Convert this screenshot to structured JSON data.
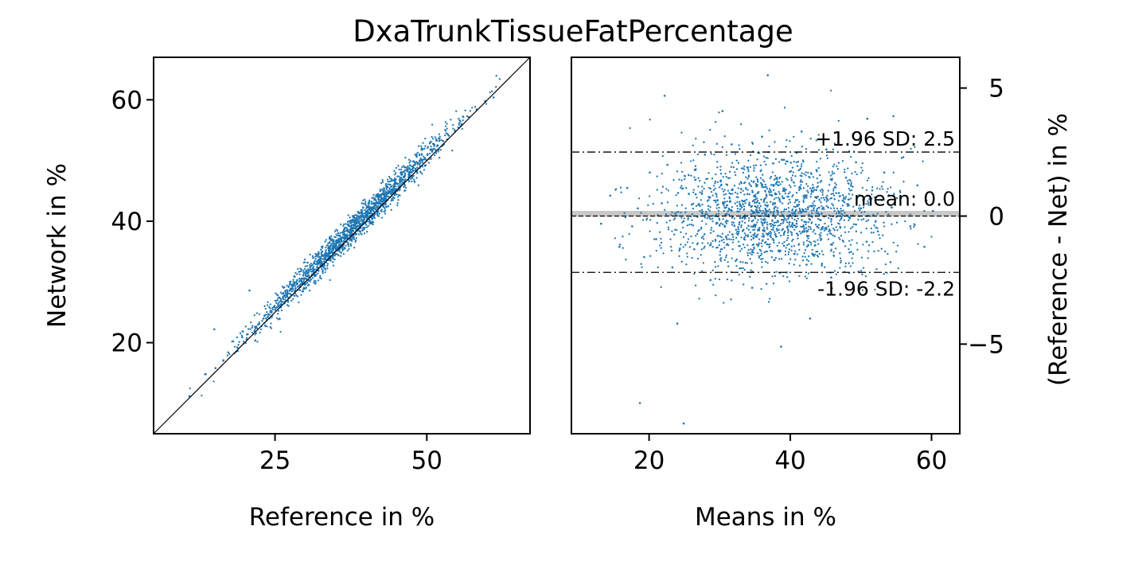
{
  "figure": {
    "title": "DxaTrunkTissueFatPercentage"
  },
  "colors": {
    "points": "#1f77b4",
    "identity_line": "#000000",
    "zero_line": "#c8c8c8",
    "limit_lines": "#000000"
  },
  "chart_data": [
    {
      "type": "scatter",
      "name": "scatter-panel",
      "xlabel": "Reference in %",
      "ylabel": "Network in %",
      "xlim": [
        5,
        67
      ],
      "ylim": [
        5,
        67
      ],
      "xticks": [
        25,
        50
      ],
      "yticks": [
        20,
        40,
        60
      ],
      "identity_line": true,
      "grid": false,
      "sampled_points": [
        [
          10.9,
          11.2
        ],
        [
          13.5,
          14.8
        ],
        [
          15.2,
          15.8
        ],
        [
          16.5,
          17.1
        ],
        [
          17.3,
          18.4
        ],
        [
          18.8,
          19.2
        ],
        [
          19.6,
          20.9
        ],
        [
          20.5,
          21.4
        ],
        [
          21.7,
          22.6
        ],
        [
          22.4,
          23.1
        ],
        [
          23.3,
          24.5
        ],
        [
          24.1,
          24.0
        ],
        [
          24.8,
          25.9
        ],
        [
          25.5,
          26.2
        ],
        [
          26.3,
          27.5
        ],
        [
          27.0,
          27.6
        ],
        [
          27.8,
          28.9
        ],
        [
          28.4,
          29.0
        ],
        [
          29.2,
          30.3
        ],
        [
          29.9,
          30.6
        ],
        [
          30.6,
          31.8
        ],
        [
          31.3,
          32.1
        ],
        [
          31.9,
          33.0
        ],
        [
          32.6,
          33.4
        ],
        [
          33.2,
          34.5
        ],
        [
          33.9,
          34.7
        ],
        [
          34.5,
          35.9
        ],
        [
          35.1,
          36.0
        ],
        [
          35.8,
          37.1
        ],
        [
          36.4,
          37.3
        ],
        [
          37.0,
          38.3
        ],
        [
          37.6,
          38.5
        ],
        [
          38.2,
          39.6
        ],
        [
          38.8,
          39.7
        ],
        [
          39.4,
          40.8
        ],
        [
          40.0,
          41.0
        ],
        [
          40.6,
          41.9
        ],
        [
          41.2,
          42.3
        ],
        [
          41.8,
          43.0
        ],
        [
          42.4,
          43.5
        ],
        [
          43.0,
          44.2
        ],
        [
          43.7,
          44.9
        ],
        [
          44.3,
          45.3
        ],
        [
          45.0,
          46.2
        ],
        [
          45.7,
          46.6
        ],
        [
          46.4,
          47.5
        ],
        [
          47.1,
          48.0
        ],
        [
          47.8,
          48.8
        ],
        [
          48.5,
          49.4
        ],
        [
          49.3,
          50.1
        ],
        [
          50.1,
          50.9
        ],
        [
          50.9,
          51.6
        ],
        [
          51.8,
          52.5
        ],
        [
          52.7,
          53.2
        ],
        [
          53.6,
          54.1
        ],
        [
          54.6,
          55.0
        ],
        [
          55.7,
          56.0
        ],
        [
          56.9,
          57.2
        ],
        [
          58.2,
          58.4
        ],
        [
          59.6,
          59.8
        ],
        [
          61.0,
          60.4
        ],
        [
          15.0,
          22.2
        ],
        [
          20.8,
          28.6
        ]
      ]
    },
    {
      "type": "scatter",
      "name": "bland-altman-panel",
      "xlabel": "Means in %",
      "ylabel": "(Reference - Net) in %",
      "xlim": [
        9,
        64
      ],
      "ylim": [
        -8.5,
        6.2
      ],
      "xticks": [
        20,
        40,
        60
      ],
      "yticks": [
        5,
        0,
        -5
      ],
      "ytick_labels": [
        "5",
        "0",
        "−5"
      ],
      "ylabel_position": "right",
      "zero_line": 0,
      "mean": 0.0,
      "upper_limit": 2.5,
      "lower_limit": -2.2,
      "annotations": {
        "upper": "+1.96 SD: 2.5",
        "mean": "mean: 0.0",
        "lower": "-1.96 SD: -2.2"
      },
      "grid": false,
      "sampled_points": [
        [
          13.2,
          -0.3
        ],
        [
          14.5,
          0.8
        ],
        [
          15.8,
          -1.2
        ],
        [
          16.9,
          1.1
        ],
        [
          17.6,
          -0.4
        ],
        [
          18.4,
          0.3
        ],
        [
          19.3,
          -1.6
        ],
        [
          20.1,
          1.7
        ],
        [
          21.0,
          -0.9
        ],
        [
          21.8,
          0.5
        ],
        [
          22.6,
          2.0
        ],
        [
          23.3,
          -2.0
        ],
        [
          24.1,
          0.9
        ],
        [
          24.9,
          -0.2
        ],
        [
          25.6,
          1.6
        ],
        [
          26.4,
          -1.3
        ],
        [
          27.2,
          0.4
        ],
        [
          27.9,
          2.4
        ],
        [
          28.7,
          -2.5
        ],
        [
          29.4,
          0.0
        ],
        [
          30.2,
          1.2
        ],
        [
          30.9,
          -0.8
        ],
        [
          31.7,
          2.8
        ],
        [
          32.4,
          -1.7
        ],
        [
          33.2,
          0.6
        ],
        [
          33.9,
          1.9
        ],
        [
          34.6,
          -2.8
        ],
        [
          35.3,
          0.2
        ],
        [
          36.0,
          3.1
        ],
        [
          36.7,
          -1.1
        ],
        [
          37.4,
          0.8
        ],
        [
          38.1,
          -0.5
        ],
        [
          38.8,
          2.2
        ],
        [
          39.5,
          -2.2
        ],
        [
          40.2,
          1.4
        ],
        [
          40.9,
          -0.3
        ],
        [
          41.6,
          3.3
        ],
        [
          42.3,
          -1.9
        ],
        [
          43.0,
          0.4
        ],
        [
          43.7,
          1.8
        ],
        [
          44.4,
          -0.9
        ],
        [
          45.1,
          2.6
        ],
        [
          45.8,
          -2.4
        ],
        [
          46.5,
          0.9
        ],
        [
          47.2,
          -0.1
        ],
        [
          47.9,
          1.5
        ],
        [
          48.6,
          -1.4
        ],
        [
          49.3,
          2.1
        ],
        [
          50.0,
          0.3
        ],
        [
          50.8,
          -1.0
        ],
        [
          51.6,
          1.0
        ],
        [
          52.4,
          -0.6
        ],
        [
          53.3,
          1.7
        ],
        [
          54.2,
          -1.8
        ],
        [
          55.1,
          0.7
        ],
        [
          56.0,
          2.3
        ],
        [
          57.0,
          -0.4
        ],
        [
          58.0,
          1.2
        ],
        [
          59.0,
          -1.2
        ],
        [
          60.2,
          0.2
        ],
        [
          36.8,
          5.5
        ],
        [
          22.2,
          4.7
        ],
        [
          18.7,
          -7.3
        ],
        [
          24.9,
          -8.1
        ],
        [
          38.7,
          -5.1
        ],
        [
          24.0,
          -4.2
        ],
        [
          30.4,
          4.1
        ],
        [
          50.9,
          3.8
        ],
        [
          54.6,
          3.9
        ],
        [
          42.8,
          -4.0
        ]
      ]
    }
  ]
}
